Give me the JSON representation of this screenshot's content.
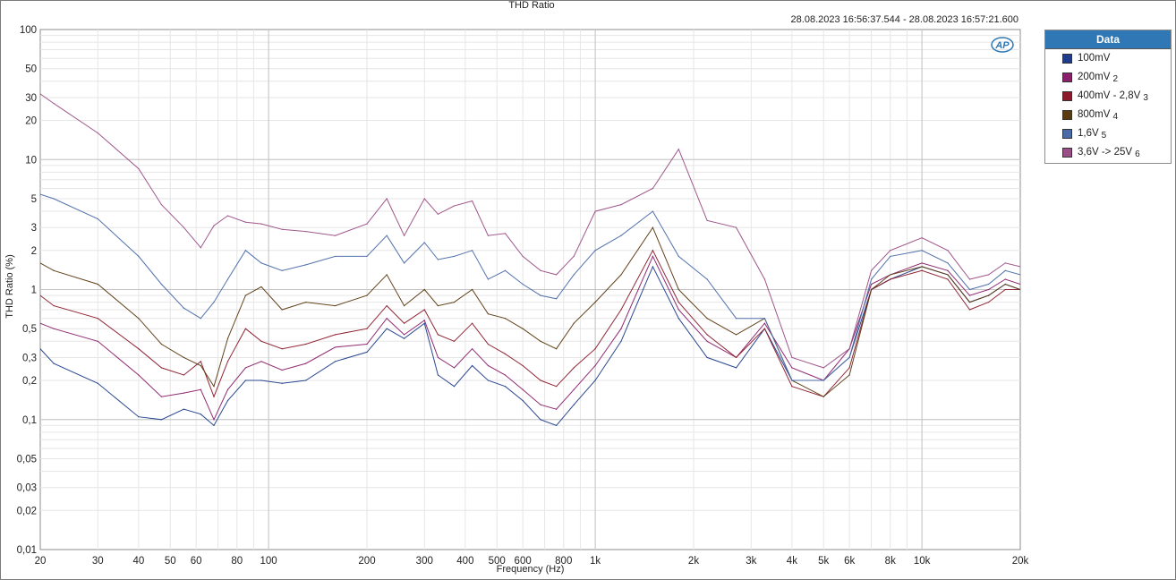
{
  "chart_data": {
    "type": "line",
    "title": "THD Ratio",
    "timestamp": "28.08.2023 16:56:37.544 - 28.08.2023 16:57:21.600",
    "xlabel": "Frequency (Hz)",
    "ylabel": "THD Ratio (%)",
    "x_scale": "log",
    "y_scale": "log",
    "xlim": [
      20,
      20000
    ],
    "ylim": [
      0.01,
      100
    ],
    "grid": true,
    "legend_placement": "right",
    "x_ticks": [
      {
        "value": 20,
        "label": "20"
      },
      {
        "value": 30,
        "label": "30"
      },
      {
        "value": 40,
        "label": "40"
      },
      {
        "value": 50,
        "label": "50"
      },
      {
        "value": 60,
        "label": "60"
      },
      {
        "value": 80,
        "label": "80"
      },
      {
        "value": 100,
        "label": "100"
      },
      {
        "value": 200,
        "label": "200"
      },
      {
        "value": 300,
        "label": "300"
      },
      {
        "value": 400,
        "label": "400"
      },
      {
        "value": 500,
        "label": "500"
      },
      {
        "value": 600,
        "label": "600"
      },
      {
        "value": 800,
        "label": "800"
      },
      {
        "value": 1000,
        "label": "1k"
      },
      {
        "value": 2000,
        "label": "2k"
      },
      {
        "value": 3000,
        "label": "3k"
      },
      {
        "value": 4000,
        "label": "4k"
      },
      {
        "value": 5000,
        "label": "5k"
      },
      {
        "value": 6000,
        "label": "6k"
      },
      {
        "value": 8000,
        "label": "8k"
      },
      {
        "value": 10000,
        "label": "10k"
      },
      {
        "value": 20000,
        "label": "20k"
      }
    ],
    "y_ticks": [
      {
        "value": 100,
        "label": "100"
      },
      {
        "value": 50,
        "label": "50"
      },
      {
        "value": 30,
        "label": "30"
      },
      {
        "value": 20,
        "label": "20"
      },
      {
        "value": 10,
        "label": "10"
      },
      {
        "value": 5,
        "label": "5"
      },
      {
        "value": 3,
        "label": "3"
      },
      {
        "value": 2,
        "label": "2"
      },
      {
        "value": 1,
        "label": "1"
      },
      {
        "value": 0.5,
        "label": "0,5"
      },
      {
        "value": 0.3,
        "label": "0,3"
      },
      {
        "value": 0.2,
        "label": "0,2"
      },
      {
        "value": 0.1,
        "label": "0,1"
      },
      {
        "value": 0.05,
        "label": "0,05"
      },
      {
        "value": 0.03,
        "label": "0,03"
      },
      {
        "value": 0.02,
        "label": "0,02"
      },
      {
        "value": 0.01,
        "label": "0,01"
      }
    ],
    "series": [
      {
        "name": "100mV",
        "suffix": "",
        "color": "#1f3d8a",
        "x": [
          20,
          22,
          30,
          40,
          47,
          55,
          62,
          68,
          75,
          85,
          95,
          110,
          130,
          160,
          200,
          230,
          260,
          300,
          330,
          370,
          420,
          470,
          530,
          600,
          680,
          760,
          860,
          1000,
          1200,
          1500,
          1800,
          2200,
          2700,
          3300,
          4000,
          5000,
          6000,
          7000,
          8000,
          10000,
          12000,
          14000,
          16000,
          18000,
          20000
        ],
        "y": [
          0.35,
          0.27,
          0.19,
          0.105,
          0.1,
          0.12,
          0.11,
          0.09,
          0.14,
          0.2,
          0.2,
          0.19,
          0.2,
          0.28,
          0.33,
          0.5,
          0.42,
          0.55,
          0.22,
          0.18,
          0.26,
          0.2,
          0.18,
          0.14,
          0.1,
          0.09,
          0.13,
          0.2,
          0.4,
          1.5,
          0.6,
          0.3,
          0.25,
          0.5,
          0.2,
          0.2,
          0.3,
          1.0,
          1.2,
          1.5,
          1.3,
          0.8,
          0.9,
          1.1,
          1.0
        ]
      },
      {
        "name": "200mV",
        "suffix": "2",
        "color": "#8a1f6a",
        "x": [
          20,
          22,
          30,
          40,
          47,
          55,
          62,
          68,
          75,
          85,
          95,
          110,
          130,
          160,
          200,
          230,
          260,
          300,
          330,
          370,
          420,
          470,
          530,
          600,
          680,
          760,
          860,
          1000,
          1200,
          1500,
          1800,
          2200,
          2700,
          3300,
          4000,
          5000,
          6000,
          7000,
          8000,
          10000,
          12000,
          14000,
          16000,
          18000,
          20000
        ],
        "y": [
          0.55,
          0.5,
          0.4,
          0.22,
          0.15,
          0.16,
          0.17,
          0.1,
          0.17,
          0.25,
          0.28,
          0.24,
          0.27,
          0.36,
          0.38,
          0.6,
          0.45,
          0.58,
          0.3,
          0.25,
          0.35,
          0.26,
          0.22,
          0.17,
          0.13,
          0.12,
          0.17,
          0.26,
          0.5,
          1.8,
          0.7,
          0.4,
          0.3,
          0.55,
          0.25,
          0.2,
          0.35,
          1.1,
          1.3,
          1.6,
          1.4,
          0.9,
          1.0,
          1.2,
          1.1
        ]
      },
      {
        "name": "400mV - 2,8V",
        "suffix": "3",
        "color": "#8b1a2b",
        "x": [
          20,
          22,
          30,
          40,
          47,
          55,
          62,
          68,
          75,
          85,
          95,
          110,
          130,
          160,
          200,
          230,
          260,
          300,
          330,
          370,
          420,
          470,
          530,
          600,
          680,
          760,
          860,
          1000,
          1200,
          1500,
          1800,
          2200,
          2700,
          3300,
          4000,
          5000,
          6000,
          7000,
          8000,
          10000,
          12000,
          14000,
          16000,
          18000,
          20000
        ],
        "y": [
          0.9,
          0.75,
          0.6,
          0.35,
          0.25,
          0.22,
          0.28,
          0.15,
          0.28,
          0.5,
          0.4,
          0.35,
          0.38,
          0.45,
          0.5,
          0.75,
          0.55,
          0.7,
          0.45,
          0.4,
          0.55,
          0.38,
          0.32,
          0.26,
          0.2,
          0.18,
          0.25,
          0.35,
          0.7,
          2.0,
          0.8,
          0.45,
          0.3,
          0.5,
          0.18,
          0.15,
          0.25,
          1.0,
          1.2,
          1.4,
          1.2,
          0.7,
          0.8,
          1.0,
          1.0
        ]
      },
      {
        "name": "800mV",
        "suffix": "4",
        "color": "#5a3a10",
        "x": [
          20,
          22,
          30,
          40,
          47,
          55,
          62,
          68,
          75,
          85,
          95,
          110,
          130,
          160,
          200,
          230,
          260,
          300,
          330,
          370,
          420,
          470,
          530,
          600,
          680,
          760,
          860,
          1000,
          1200,
          1500,
          1800,
          2200,
          2700,
          3300,
          4000,
          5000,
          6000,
          7000,
          8000,
          10000,
          12000,
          14000,
          16000,
          18000,
          20000
        ],
        "y": [
          1.6,
          1.4,
          1.1,
          0.6,
          0.38,
          0.3,
          0.26,
          0.18,
          0.42,
          0.9,
          1.05,
          0.7,
          0.8,
          0.75,
          0.9,
          1.3,
          0.75,
          1.0,
          0.75,
          0.8,
          1.0,
          0.65,
          0.6,
          0.5,
          0.4,
          0.35,
          0.55,
          0.8,
          1.3,
          3.0,
          1.0,
          0.6,
          0.45,
          0.6,
          0.2,
          0.15,
          0.22,
          1.0,
          1.3,
          1.5,
          1.3,
          0.8,
          0.9,
          1.1,
          1.0
        ]
      },
      {
        "name": "1,6V",
        "suffix": "5",
        "color": "#4a6aa8",
        "x": [
          20,
          22,
          30,
          40,
          47,
          55,
          62,
          68,
          75,
          85,
          95,
          110,
          130,
          160,
          200,
          230,
          260,
          300,
          330,
          370,
          420,
          470,
          530,
          600,
          680,
          760,
          860,
          1000,
          1200,
          1500,
          1800,
          2200,
          2700,
          3300,
          4000,
          5000,
          6000,
          7000,
          8000,
          10000,
          12000,
          14000,
          16000,
          18000,
          20000
        ],
        "y": [
          5.4,
          5.0,
          3.5,
          1.8,
          1.1,
          0.72,
          0.6,
          0.8,
          1.2,
          2.0,
          1.6,
          1.4,
          1.55,
          1.8,
          1.8,
          2.6,
          1.6,
          2.3,
          1.7,
          1.8,
          2.0,
          1.2,
          1.4,
          1.1,
          0.9,
          0.85,
          1.3,
          2.0,
          2.6,
          4.0,
          1.8,
          1.2,
          0.6,
          0.6,
          0.2,
          0.2,
          0.3,
          1.2,
          1.8,
          2.0,
          1.6,
          1.0,
          1.1,
          1.4,
          1.3
        ]
      },
      {
        "name": "3,6V -> 25V",
        "suffix": "6",
        "color": "#9a4f86",
        "x": [
          20,
          22,
          30,
          40,
          47,
          55,
          62,
          68,
          75,
          85,
          95,
          110,
          130,
          160,
          200,
          230,
          260,
          300,
          330,
          370,
          420,
          470,
          530,
          600,
          680,
          760,
          860,
          1000,
          1200,
          1500,
          1800,
          2200,
          2700,
          3300,
          4000,
          5000,
          6000,
          7000,
          8000,
          10000,
          12000,
          14000,
          16000,
          18000,
          20000
        ],
        "y": [
          32,
          27,
          16,
          8.5,
          4.5,
          3.0,
          2.1,
          3.1,
          3.7,
          3.3,
          3.2,
          2.9,
          2.8,
          2.6,
          3.2,
          5.0,
          2.6,
          5.0,
          3.8,
          4.4,
          4.8,
          2.6,
          2.7,
          1.8,
          1.4,
          1.3,
          1.8,
          4.0,
          4.5,
          6.0,
          12.0,
          3.4,
          3.0,
          1.2,
          0.3,
          0.25,
          0.35,
          1.4,
          2.0,
          2.5,
          2.0,
          1.2,
          1.3,
          1.6,
          1.5
        ]
      }
    ]
  }
}
